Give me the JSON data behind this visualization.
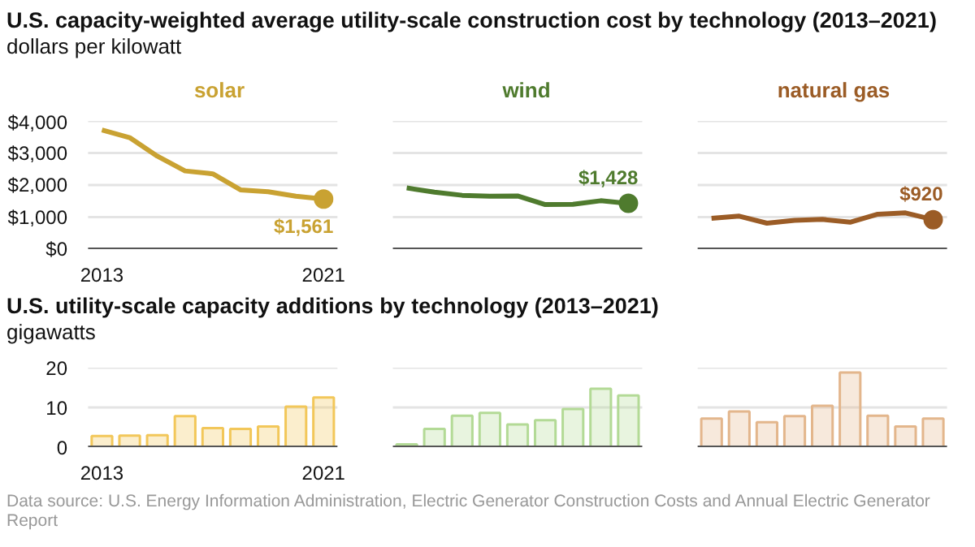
{
  "chart_data": [
    {
      "type": "line",
      "title": "U.S. capacity-weighted average utility-scale construction cost by technology (2013–2021)",
      "ylabel": "dollars per kilowatt",
      "categories": [
        "2013",
        null,
        null,
        null,
        null,
        null,
        null,
        null,
        "2021",
        null,
        null,
        null,
        null,
        null,
        null,
        null,
        null,
        null,
        null,
        null,
        null,
        null,
        null,
        null,
        null,
        null,
        null,
        null,
        null,
        null,
        null
      ],
      "ylim": [
        0,
        4000
      ],
      "yticks": [
        {
          "value": 0,
          "label": "$0"
        },
        {
          "value": 1000,
          "label": "$1,000"
        },
        {
          "value": 2000,
          "label": "$2,000"
        },
        {
          "value": 3000,
          "label": "$3,000"
        },
        {
          "value": 4000,
          "label": "$4,000"
        }
      ],
      "grid": "y",
      "series": [
        {
          "name": "solar",
          "color": "#c9a232",
          "values": [
            3720,
            3480,
            2900,
            2440,
            2350,
            1850,
            1790,
            1650,
            1561,
            null,
            null,
            null,
            null,
            null,
            null,
            null,
            null,
            null,
            null,
            null,
            null,
            null,
            null,
            null,
            null,
            null,
            null,
            null,
            null,
            null,
            null
          ],
          "value_labels": [
            null,
            null,
            null,
            null,
            null,
            null,
            null,
            null,
            "$1,561",
            null,
            null,
            null,
            null,
            null,
            null,
            null,
            null,
            null,
            null,
            null,
            null,
            null,
            null,
            null,
            null,
            null,
            null,
            null,
            null,
            null,
            null
          ]
        },
        {
          "name": "wind",
          "color": "#4f7b2e",
          "values": [
            null,
            null,
            null,
            null,
            null,
            null,
            null,
            null,
            null,
            null,
            null,
            1910,
            1780,
            1680,
            1650,
            1660,
            1390,
            1400,
            1510,
            1428,
            null,
            null,
            null,
            null,
            null,
            null,
            null,
            null,
            null,
            null,
            null
          ],
          "value_labels": [
            null,
            null,
            null,
            null,
            null,
            null,
            null,
            null,
            null,
            null,
            null,
            null,
            null,
            null,
            null,
            null,
            null,
            null,
            null,
            "$1,428",
            null,
            null,
            null,
            null,
            null,
            null,
            null,
            null,
            null,
            null,
            null
          ]
        },
        {
          "name": "natural gas",
          "color": "#9b5c26",
          "values": [
            null,
            null,
            null,
            null,
            null,
            null,
            null,
            null,
            null,
            null,
            null,
            null,
            null,
            null,
            null,
            null,
            null,
            null,
            null,
            null,
            null,
            null,
            960,
            1030,
            810,
            900,
            930,
            840,
            1090,
            1130,
            920
          ],
          "value_labels": [
            null,
            null,
            null,
            null,
            null,
            null,
            null,
            null,
            null,
            null,
            null,
            null,
            null,
            null,
            null,
            null,
            null,
            null,
            null,
            null,
            null,
            null,
            null,
            null,
            null,
            null,
            null,
            null,
            null,
            null,
            "$920"
          ]
        }
      ]
    },
    {
      "type": "bar",
      "title": "U.S. utility-scale capacity additions by technology (2013–2021)",
      "ylabel": "gigawatts",
      "categories": [
        "2013",
        null,
        null,
        null,
        null,
        null,
        null,
        null,
        "2021",
        null,
        null,
        null,
        null,
        null,
        null,
        null,
        null,
        null,
        null,
        null,
        null,
        null,
        null,
        null,
        null,
        null,
        null,
        null,
        null,
        null,
        null
      ],
      "ylim": [
        0,
        20
      ],
      "yticks": [
        0,
        10,
        20
      ],
      "grid": "y",
      "series": [
        {
          "color": "#f2c75a",
          "values": [
            2.8,
            2.9,
            3.0,
            7.8,
            4.8,
            4.6,
            5.2,
            10.2,
            12.5,
            null,
            null,
            null,
            null,
            null,
            null,
            null,
            null,
            null,
            null,
            null,
            null,
            null,
            null,
            null,
            null,
            null,
            null,
            null,
            null,
            null,
            null
          ]
        },
        {
          "color": "#b3da96",
          "values": [
            null,
            null,
            null,
            null,
            null,
            null,
            null,
            null,
            null,
            null,
            null,
            0.7,
            4.6,
            7.9,
            8.6,
            5.7,
            6.8,
            9.6,
            14.7,
            13.0,
            null,
            null,
            null,
            null,
            null,
            null,
            null,
            null,
            null,
            null,
            null
          ]
        },
        {
          "color": "#e3b68c",
          "values": [
            null,
            null,
            null,
            null,
            null,
            null,
            null,
            null,
            null,
            null,
            null,
            null,
            null,
            null,
            null,
            null,
            null,
            null,
            null,
            null,
            null,
            null,
            7.2,
            9.0,
            6.3,
            7.8,
            10.4,
            18.8,
            7.9,
            5.2,
            7.2
          ]
        }
      ],
      "annotations": [
        "Data source: U.S. Energy Information Administration, Electric Generator Construction Costs and Annual Electric Generator Report"
      ]
    }
  ]
}
